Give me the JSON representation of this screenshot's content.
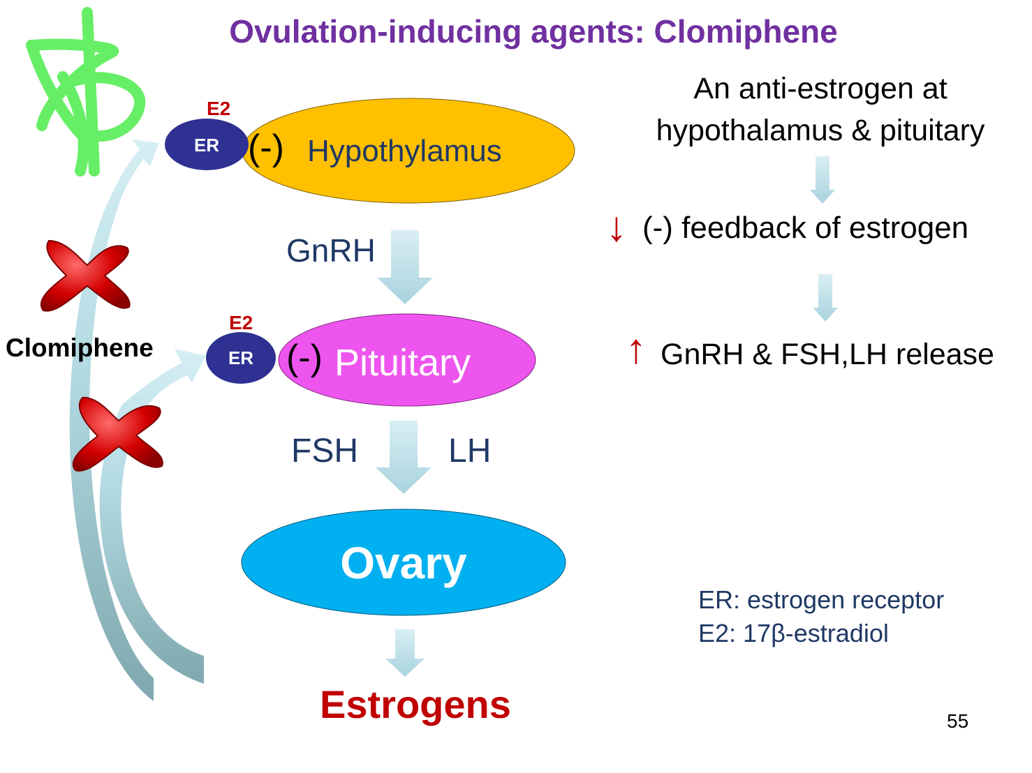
{
  "title": "Ovulation-inducing agents: Clomiphene",
  "labels": {
    "e2": "E2",
    "er": "ER",
    "neg": "(-)",
    "hypothalamus": "Hypothylamus",
    "gnrh": "GnRH",
    "pituitary": "Pituitary",
    "fsh": "FSH",
    "lh": "LH",
    "ovary": "Ovary",
    "estrogens": "Estrogens",
    "clomiphene": "Clomiphene"
  },
  "right": {
    "line1": "An anti-estrogen at",
    "line2": "hypothalamus & pituitary",
    "down_arrow": "↓",
    "feedback": "(-) feedback of estrogen",
    "up_arrow": "↑",
    "release": "GnRH & FSH,LH release"
  },
  "legend": {
    "er": "ER: estrogen receptor",
    "e2": "E2: 17β-estradiol"
  },
  "page_number": "55",
  "colors": {
    "title": "#7030a0",
    "hypothalamus": "#ffc000",
    "pituitary": "#ee55ee",
    "ovary": "#00b0f0",
    "receptor": "#2e3192",
    "estrogens": "#c00000",
    "arrow": "#b7dde8",
    "drug": "#66ee66",
    "block": "#cc0000"
  }
}
